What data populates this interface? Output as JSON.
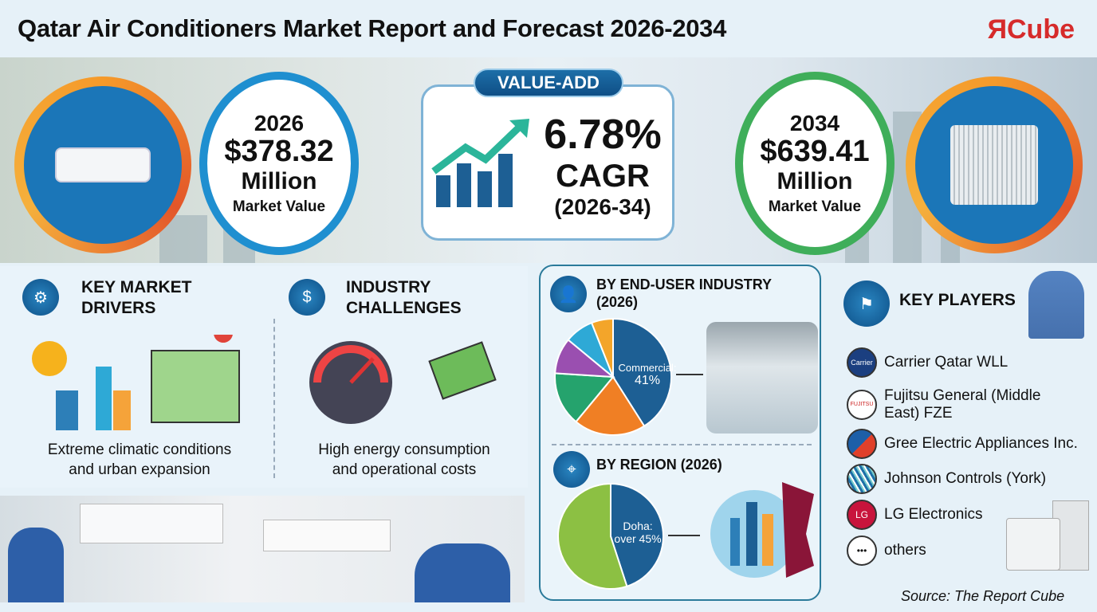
{
  "header": {
    "title": "Qatar Air Conditioners Market Report and Forecast 2026-2034",
    "logo": "ЯCube"
  },
  "left_value": {
    "year": "2026",
    "value": "$378.32",
    "unit": "Million",
    "label": "Market Value",
    "color": "#1f8fd0"
  },
  "center": {
    "badge": "VALUE-ADD",
    "cagr": "6.78%",
    "cagr_label": "CAGR",
    "period": "(2026-34)"
  },
  "right_value": {
    "year": "2034",
    "value": "$639.41",
    "unit": "Million",
    "label": "Market Value",
    "color": "#3fae5a"
  },
  "drivers": {
    "title_line1": "KEY MARKET",
    "title_line2": "DRIVERS",
    "caption_line1": "Extreme climatic conditions",
    "caption_line2": "and urban expansion"
  },
  "challenges": {
    "title_line1": "INDUSTRY",
    "title_line2": "CHALLENGES",
    "caption_line1": "High energy consumption",
    "caption_line2": "and operational costs"
  },
  "chart_data": [
    {
      "type": "pie",
      "title": "BY END-USER INDUSTRY (2026)",
      "label": "Commercial:",
      "label_value": "41%",
      "slices": [
        {
          "name": "Commercial",
          "value": 41,
          "color": "#1d5f94"
        },
        {
          "value": 20,
          "color": "#f07f24"
        },
        {
          "value": 15,
          "color": "#25a36d"
        },
        {
          "value": 10,
          "color": "#9a4fb0"
        },
        {
          "value": 8,
          "color": "#2ea9d6"
        },
        {
          "value": 6,
          "color": "#f3a52a"
        }
      ]
    },
    {
      "type": "pie",
      "title": "BY REGION (2026)",
      "label": "Doha:",
      "label_value": "over 45%",
      "slices": [
        {
          "name": "Doha",
          "value": 45,
          "color": "#1d5f94"
        },
        {
          "value": 55,
          "color": "#8cc043"
        }
      ]
    }
  ],
  "players": {
    "title": "KEY PLAYERS",
    "items": [
      {
        "name": "Carrier Qatar WLL",
        "logo": "Carrier"
      },
      {
        "name": "Fujitsu General (Middle East) FZE",
        "logo": "FUJITSU"
      },
      {
        "name": "Gree Electric Appliances Inc.",
        "logo": ""
      },
      {
        "name": "Johnson Controls (York)",
        "logo": ""
      },
      {
        "name": "LG Electronics",
        "logo": "LG"
      },
      {
        "name": "others",
        "logo": "•••"
      }
    ]
  },
  "source": "Source: The Report Cube"
}
